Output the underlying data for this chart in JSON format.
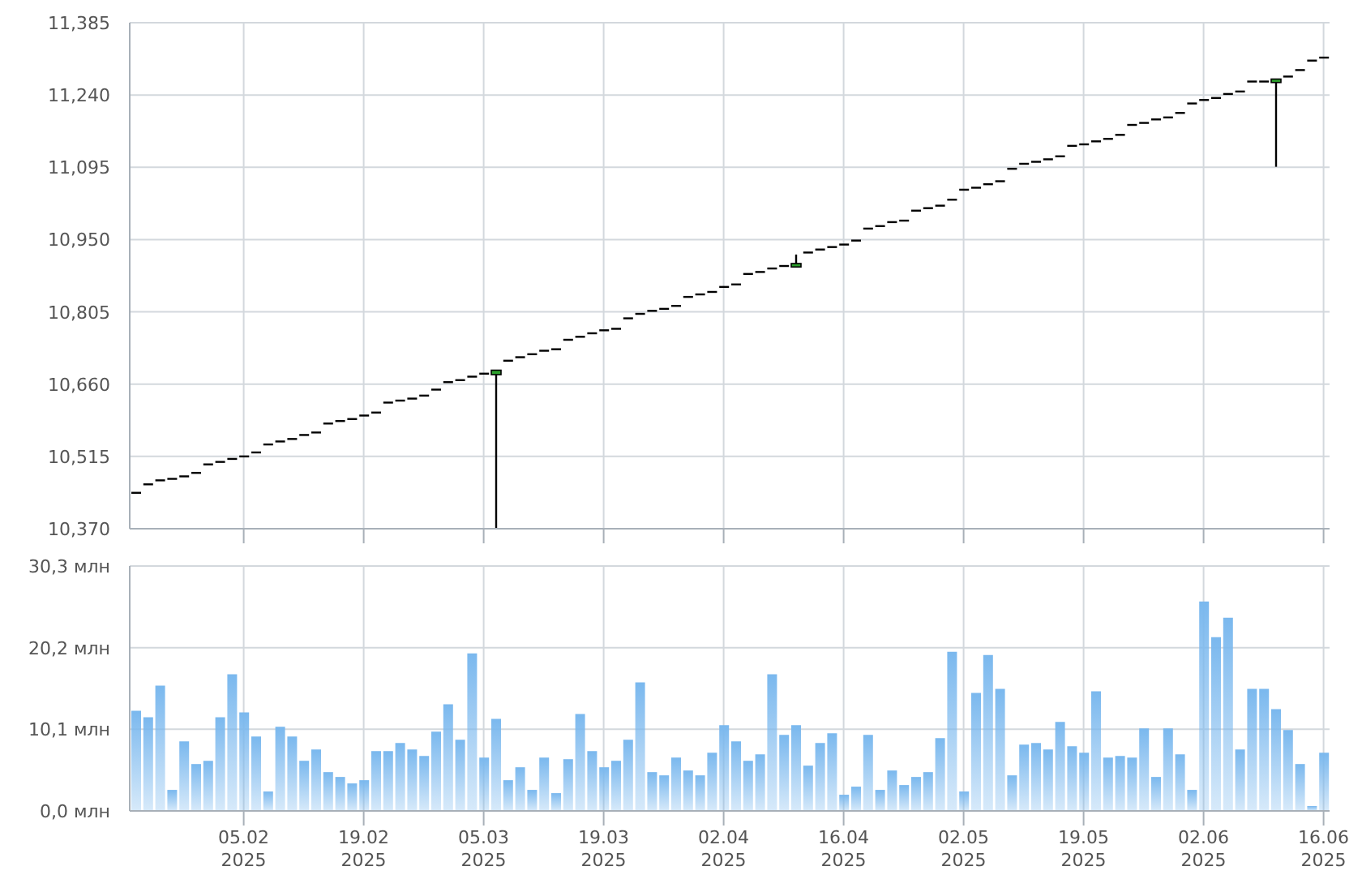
{
  "chart_data": [
    {
      "type": "candlestick",
      "categories": [
        null,
        null,
        null,
        null,
        null,
        null,
        null,
        null,
        null,
        null,
        null,
        null,
        null,
        null,
        null,
        null,
        null,
        null,
        null,
        null,
        null,
        null,
        null,
        null,
        null,
        null,
        null,
        null,
        null,
        null,
        null,
        null,
        null,
        null,
        null,
        null,
        null,
        null,
        null,
        null,
        null,
        null,
        null,
        null,
        null,
        null,
        null,
        null,
        null,
        null,
        null,
        null,
        null,
        null,
        null,
        null,
        null,
        null,
        null,
        null,
        null,
        null,
        null,
        null,
        null,
        null,
        null,
        null,
        null,
        null,
        null,
        null,
        null,
        null,
        null,
        null,
        null,
        null,
        null,
        null,
        null,
        null,
        null,
        null,
        null,
        null,
        null,
        null,
        null,
        null,
        null,
        null,
        null,
        null,
        null,
        null,
        null,
        null,
        null,
        null
      ],
      "ohlc": [
        [
          10442,
          10442,
          10442,
          10442
        ],
        [
          10459,
          10459,
          10459,
          10459
        ],
        [
          10467,
          10467,
          10467,
          10467
        ],
        [
          10470,
          10470,
          10470,
          10470
        ],
        [
          10475,
          10475,
          10475,
          10475
        ],
        [
          10482,
          10482,
          10482,
          10482
        ],
        [
          10499,
          10499,
          10499,
          10499
        ],
        [
          10504,
          10504,
          10504,
          10504
        ],
        [
          10510,
          10510,
          10510,
          10510
        ],
        [
          10515,
          10515,
          10515,
          10515
        ],
        [
          10523,
          10523,
          10523,
          10523
        ],
        [
          10539,
          10539,
          10539,
          10539
        ],
        [
          10545,
          10545,
          10545,
          10545
        ],
        [
          10550,
          10550,
          10550,
          10550
        ],
        [
          10558,
          10558,
          10558,
          10558
        ],
        [
          10563,
          10563,
          10563,
          10563
        ],
        [
          10581,
          10581,
          10581,
          10581
        ],
        [
          10586,
          10586,
          10586,
          10586
        ],
        [
          10590,
          10590,
          10590,
          10590
        ],
        [
          10597,
          10597,
          10597,
          10597
        ],
        [
          10603,
          10603,
          10603,
          10603
        ],
        [
          10623,
          10623,
          10623,
          10623
        ],
        [
          10627,
          10627,
          10627,
          10627
        ],
        [
          10631,
          10631,
          10631,
          10631
        ],
        [
          10637,
          10637,
          10637,
          10637
        ],
        [
          10649,
          10649,
          10649,
          10649
        ],
        [
          10664,
          10664,
          10664,
          10664
        ],
        [
          10668,
          10668,
          10668,
          10668
        ],
        [
          10675,
          10675,
          10675,
          10675
        ],
        [
          10681,
          10681,
          10681,
          10681
        ],
        [
          10681,
          10686,
          10370,
          10686
        ],
        [
          10707,
          10707,
          10707,
          10707
        ],
        [
          10714,
          10714,
          10714,
          10714
        ],
        [
          10720,
          10720,
          10720,
          10720
        ],
        [
          10727,
          10727,
          10727,
          10727
        ],
        [
          10730,
          10730,
          10730,
          10730
        ],
        [
          10749,
          10749,
          10749,
          10749
        ],
        [
          10755,
          10755,
          10755,
          10755
        ],
        [
          10762,
          10762,
          10762,
          10762
        ],
        [
          10768,
          10768,
          10768,
          10768
        ],
        [
          10771,
          10771,
          10771,
          10771
        ],
        [
          10792,
          10792,
          10792,
          10792
        ],
        [
          10801,
          10801,
          10801,
          10801
        ],
        [
          10807,
          10807,
          10807,
          10807
        ],
        [
          10811,
          10811,
          10811,
          10811
        ],
        [
          10817,
          10817,
          10817,
          10817
        ],
        [
          10835,
          10835,
          10835,
          10835
        ],
        [
          10840,
          10840,
          10840,
          10840
        ],
        [
          10845,
          10845,
          10845,
          10845
        ],
        [
          10855,
          10855,
          10855,
          10855
        ],
        [
          10860,
          10860,
          10860,
          10860
        ],
        [
          10881,
          10881,
          10881,
          10881
        ],
        [
          10885,
          10885,
          10885,
          10885
        ],
        [
          10892,
          10892,
          10892,
          10892
        ],
        [
          10897,
          10897,
          10897,
          10897
        ],
        [
          10897,
          10920,
          10897,
          10900
        ],
        [
          10924,
          10924,
          10924,
          10924
        ],
        [
          10930,
          10930,
          10930,
          10930
        ],
        [
          10935,
          10935,
          10935,
          10935
        ],
        [
          10940,
          10940,
          10940,
          10940
        ],
        [
          10948,
          10948,
          10948,
          10948
        ],
        [
          10972,
          10972,
          10972,
          10972
        ],
        [
          10977,
          10977,
          10977,
          10977
        ],
        [
          10985,
          10985,
          10985,
          10985
        ],
        [
          10988,
          10988,
          10988,
          10988
        ],
        [
          11008,
          11008,
          11008,
          11008
        ],
        [
          11013,
          11013,
          11013,
          11013
        ],
        [
          11018,
          11018,
          11018,
          11018
        ],
        [
          11030,
          11030,
          11030,
          11030
        ],
        [
          11050,
          11050,
          11050,
          11050
        ],
        [
          11054,
          11054,
          11054,
          11054
        ],
        [
          11061,
          11061,
          11061,
          11061
        ],
        [
          11067,
          11067,
          11067,
          11067
        ],
        [
          11092,
          11092,
          11092,
          11092
        ],
        [
          11102,
          11102,
          11102,
          11102
        ],
        [
          11106,
          11106,
          11106,
          11106
        ],
        [
          11111,
          11111,
          11111,
          11111
        ],
        [
          11117,
          11117,
          11117,
          11117
        ],
        [
          11138,
          11138,
          11138,
          11138
        ],
        [
          11141,
          11141,
          11141,
          11141
        ],
        [
          11147,
          11147,
          11147,
          11147
        ],
        [
          11152,
          11152,
          11152,
          11152
        ],
        [
          11160,
          11160,
          11160,
          11160
        ],
        [
          11180,
          11180,
          11180,
          11180
        ],
        [
          11184,
          11184,
          11184,
          11184
        ],
        [
          11191,
          11191,
          11191,
          11191
        ],
        [
          11195,
          11195,
          11195,
          11195
        ],
        [
          11204,
          11204,
          11204,
          11204
        ],
        [
          11223,
          11223,
          11223,
          11223
        ],
        [
          11230,
          11230,
          11230,
          11230
        ],
        [
          11234,
          11234,
          11234,
          11234
        ],
        [
          11242,
          11242,
          11242,
          11242
        ],
        [
          11247,
          11247,
          11247,
          11247
        ],
        [
          11267,
          11267,
          11267,
          11267
        ],
        [
          11267,
          11267,
          11267,
          11267
        ],
        [
          11267,
          11270,
          11096,
          11270
        ],
        [
          11277,
          11277,
          11277,
          11277
        ],
        [
          11290,
          11290,
          11290,
          11290
        ],
        [
          11309,
          11309,
          11309,
          11309
        ],
        [
          11315,
          11315,
          11315,
          11315
        ]
      ],
      "color": "#000000",
      "ylim": [
        10370,
        11385
      ],
      "yticks": [
        {
          "value": 10370,
          "label": "10,370"
        },
        {
          "value": 10515,
          "label": "10,515"
        },
        {
          "value": 10660,
          "label": "10,660"
        },
        {
          "value": 10805,
          "label": "10,805"
        },
        {
          "value": 10950,
          "label": "10,950"
        },
        {
          "value": 11095,
          "label": "11,095"
        },
        {
          "value": 11240,
          "label": "11,240"
        },
        {
          "value": 11385,
          "label": "11,385"
        }
      ],
      "grid": true,
      "tick_labels": "y"
    },
    {
      "type": "bar",
      "categories": [
        null,
        null,
        null,
        null,
        null,
        null,
        null,
        null,
        null,
        "05.02\n2025",
        null,
        null,
        null,
        null,
        null,
        null,
        null,
        null,
        null,
        "19.02\n2025",
        null,
        null,
        null,
        null,
        null,
        null,
        null,
        null,
        null,
        "05.03\n2025",
        null,
        null,
        null,
        null,
        null,
        null,
        null,
        null,
        null,
        "19.03\n2025",
        null,
        null,
        null,
        null,
        null,
        null,
        null,
        null,
        null,
        "02.04\n2025",
        null,
        null,
        null,
        null,
        null,
        null,
        null,
        null,
        null,
        "16.04\n2025",
        null,
        null,
        null,
        null,
        null,
        null,
        null,
        null,
        null,
        "02.05\n2025",
        null,
        null,
        null,
        null,
        null,
        null,
        null,
        null,
        null,
        "19.05\n2025",
        null,
        null,
        null,
        null,
        null,
        null,
        null,
        null,
        null,
        "02.06\n2025",
        null,
        null,
        null,
        null,
        null,
        null,
        null,
        null,
        null,
        "16.06\n2025"
      ],
      "values": [
        12.4,
        11.6,
        15.5,
        2.6,
        8.6,
        5.8,
        6.2,
        11.6,
        16.9,
        12.2,
        9.2,
        2.4,
        10.4,
        9.2,
        6.2,
        7.6,
        4.8,
        4.2,
        3.4,
        3.8,
        7.4,
        7.4,
        8.4,
        7.6,
        6.8,
        9.8,
        13.2,
        8.8,
        19.5,
        6.6,
        11.4,
        3.8,
        5.4,
        2.6,
        6.6,
        2.2,
        6.4,
        12.0,
        7.4,
        5.4,
        6.2,
        8.8,
        15.9,
        4.8,
        4.4,
        6.6,
        5.0,
        4.4,
        7.2,
        10.6,
        8.6,
        6.2,
        7.0,
        16.9,
        9.4,
        10.6,
        5.6,
        8.4,
        9.6,
        2.0,
        3.0,
        9.4,
        2.6,
        5.0,
        3.2,
        4.2,
        4.8,
        9.0,
        19.7,
        2.4,
        14.6,
        19.3,
        15.1,
        4.4,
        8.2,
        8.4,
        7.6,
        11.0,
        8.0,
        7.2,
        14.8,
        6.6,
        6.8,
        6.6,
        10.2,
        4.2,
        10.2,
        7.0,
        2.6,
        25.9,
        21.5,
        23.9,
        7.6,
        15.1,
        15.1,
        12.6,
        10.0,
        5.8,
        0.6,
        7.2
      ],
      "color": "#7ab8ee",
      "ylim": [
        0,
        30.3
      ],
      "yticks": [
        {
          "value": 0,
          "label": "0,0 млн"
        },
        {
          "value": 10.1,
          "label": "10,1 млн"
        },
        {
          "value": 20.2,
          "label": "20,2 млн"
        },
        {
          "value": 30.3,
          "label": "30,3 млн"
        }
      ],
      "grid": true
    }
  ]
}
